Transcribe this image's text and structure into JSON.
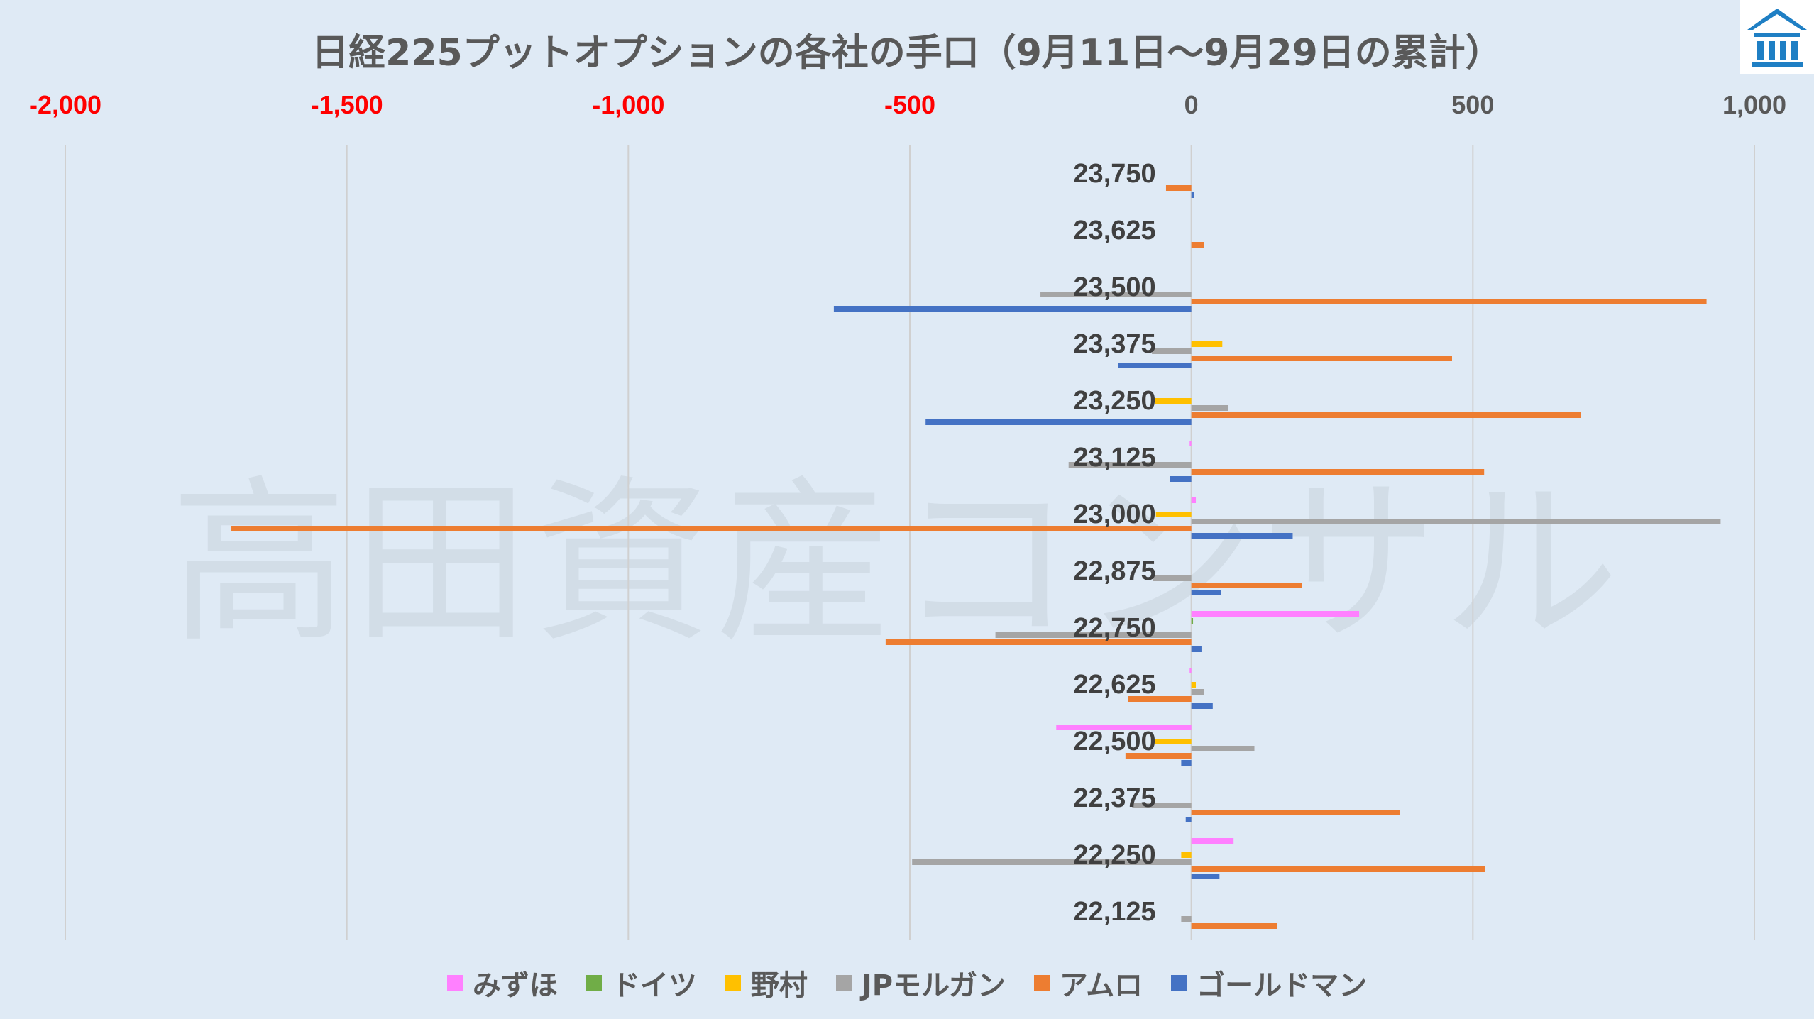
{
  "chart_data": {
    "type": "bar",
    "orientation": "horizontal",
    "title": "日経225プットオプションの各社の手口（9月11日～9月29日の累計）",
    "categories": [
      "23,750",
      "23,625",
      "23,500",
      "23,375",
      "23,250",
      "23,125",
      "23,000",
      "22,875",
      "22,750",
      "22,625",
      "22,500",
      "22,375",
      "22,250",
      "22,125"
    ],
    "xlim": [
      -2000,
      1000
    ],
    "xticks": [
      -2000,
      -1500,
      -1000,
      -500,
      0,
      500,
      1000
    ],
    "xtick_labels": [
      "-2,000",
      "-1,500",
      "-1,000",
      "-500",
      "0",
      "500",
      "1,000"
    ],
    "negative_tick_color": "#ff0000",
    "positive_tick_color": "#595959",
    "axis_position": "top",
    "grid": true,
    "legend_position": "bottom",
    "series": [
      {
        "name": "みずほ",
        "color": "#ff80ff",
        "values": [
          0,
          0,
          0,
          0,
          0,
          -3,
          8,
          0,
          298,
          -3,
          -240,
          0,
          75,
          0
        ]
      },
      {
        "name": "ドイツ",
        "color": "#70ad47",
        "values": [
          0,
          0,
          0,
          0,
          0,
          0,
          0,
          0,
          3,
          0,
          0,
          0,
          0,
          0
        ]
      },
      {
        "name": "野村",
        "color": "#ffc000",
        "values": [
          0,
          0,
          0,
          55,
          -65,
          0,
          -63,
          0,
          0,
          8,
          -65,
          0,
          -18,
          0
        ]
      },
      {
        "name": "JPモルガン",
        "color": "#a5a5a5",
        "values": [
          0,
          0,
          -268,
          -70,
          65,
          -218,
          940,
          -68,
          -348,
          22,
          112,
          -105,
          -496,
          -18
        ]
      },
      {
        "name": "アムロ",
        "color": "#ed7d31",
        "values": [
          -45,
          23,
          915,
          463,
          692,
          520,
          -1705,
          197,
          -543,
          -112,
          -117,
          370,
          521,
          152
        ]
      },
      {
        "name": "ゴールドマン",
        "color": "#4472c4",
        "values": [
          5,
          0,
          -635,
          -130,
          -472,
          -38,
          180,
          53,
          18,
          38,
          -18,
          -10,
          50,
          0
        ]
      }
    ]
  },
  "watermark_text": "高田資産コンサル",
  "logo": {
    "name": "building-logo",
    "color": "#1f7fc4"
  }
}
